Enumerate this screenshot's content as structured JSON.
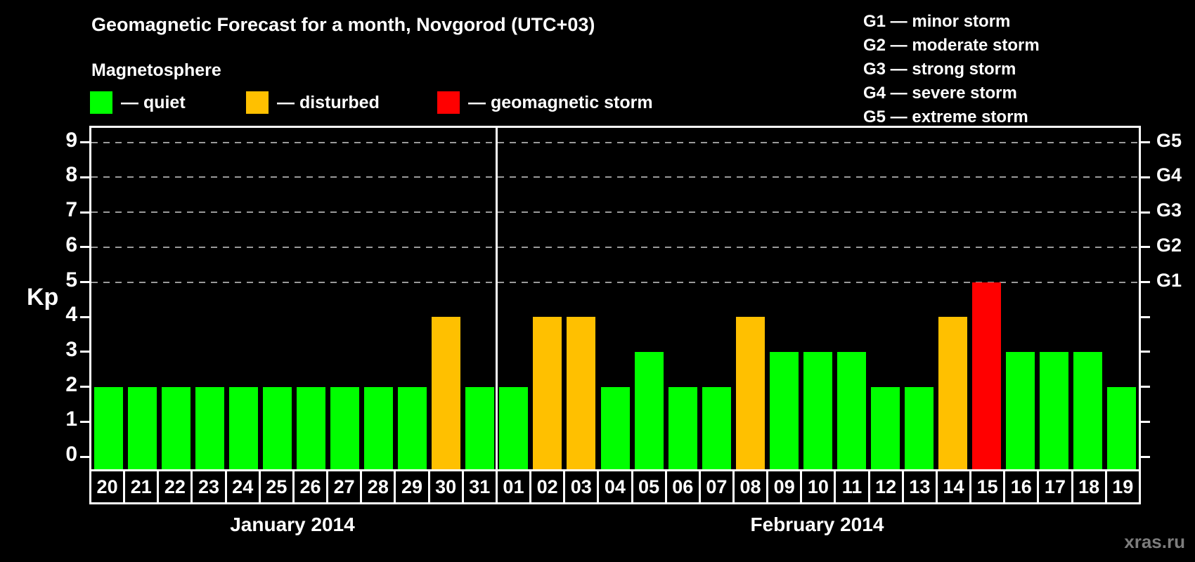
{
  "title": "Geomagnetic Forecast for a month, Novgorod (UTC+03)",
  "legend": {
    "heading": "Magnetosphere",
    "items": [
      {
        "name": "quiet",
        "label": "— quiet",
        "color": "#00ff00"
      },
      {
        "name": "disturbed",
        "label": "— disturbed",
        "color": "#ffc000"
      },
      {
        "name": "storm",
        "label": "— geomagnetic storm",
        "color": "#ff0000"
      }
    ]
  },
  "g_scale_legend": [
    "G1 — minor storm",
    "G2 — moderate storm",
    "G3 — strong storm",
    "G4 — severe storm",
    "G5 — extreme storm"
  ],
  "watermark": "xras.ru",
  "chart_data": {
    "type": "bar",
    "title": "Geomagnetic Forecast for a month, Novgorod (UTC+03)",
    "ylabel": "Kp",
    "ylim": [
      0,
      9
    ],
    "y_ticks": [
      0,
      1,
      2,
      3,
      4,
      5,
      6,
      7,
      8,
      9
    ],
    "gridlines": [
      5,
      6,
      7,
      8,
      9
    ],
    "grid_style": "dashed",
    "legend_position": "top",
    "right_axis_labels": [
      {
        "value": 5,
        "label": "G1"
      },
      {
        "value": 6,
        "label": "G2"
      },
      {
        "value": 7,
        "label": "G3"
      },
      {
        "value": 8,
        "label": "G4"
      },
      {
        "value": 9,
        "label": "G5"
      }
    ],
    "months": [
      {
        "label": "January 2014",
        "days": 12
      },
      {
        "label": "February 2014",
        "days": 19
      }
    ],
    "categories": [
      "20",
      "21",
      "22",
      "23",
      "24",
      "25",
      "26",
      "27",
      "28",
      "29",
      "30",
      "31",
      "01",
      "02",
      "03",
      "04",
      "05",
      "06",
      "07",
      "08",
      "09",
      "10",
      "11",
      "12",
      "13",
      "14",
      "15",
      "16",
      "17",
      "18",
      "19"
    ],
    "values": [
      2,
      2,
      2,
      2,
      2,
      2,
      2,
      2,
      2,
      2,
      4,
      2,
      2,
      4,
      4,
      2,
      3,
      2,
      2,
      4,
      3,
      3,
      3,
      2,
      2,
      4,
      5,
      3,
      3,
      3,
      2
    ],
    "statuses": [
      "quiet",
      "quiet",
      "quiet",
      "quiet",
      "quiet",
      "quiet",
      "quiet",
      "quiet",
      "quiet",
      "quiet",
      "disturbed",
      "quiet",
      "quiet",
      "disturbed",
      "disturbed",
      "quiet",
      "quiet",
      "quiet",
      "quiet",
      "disturbed",
      "quiet",
      "quiet",
      "quiet",
      "quiet",
      "quiet",
      "disturbed",
      "storm",
      "quiet",
      "quiet",
      "quiet",
      "quiet"
    ],
    "colors": {
      "quiet": "#00ff00",
      "disturbed": "#ffc000",
      "storm": "#ff0000"
    }
  }
}
